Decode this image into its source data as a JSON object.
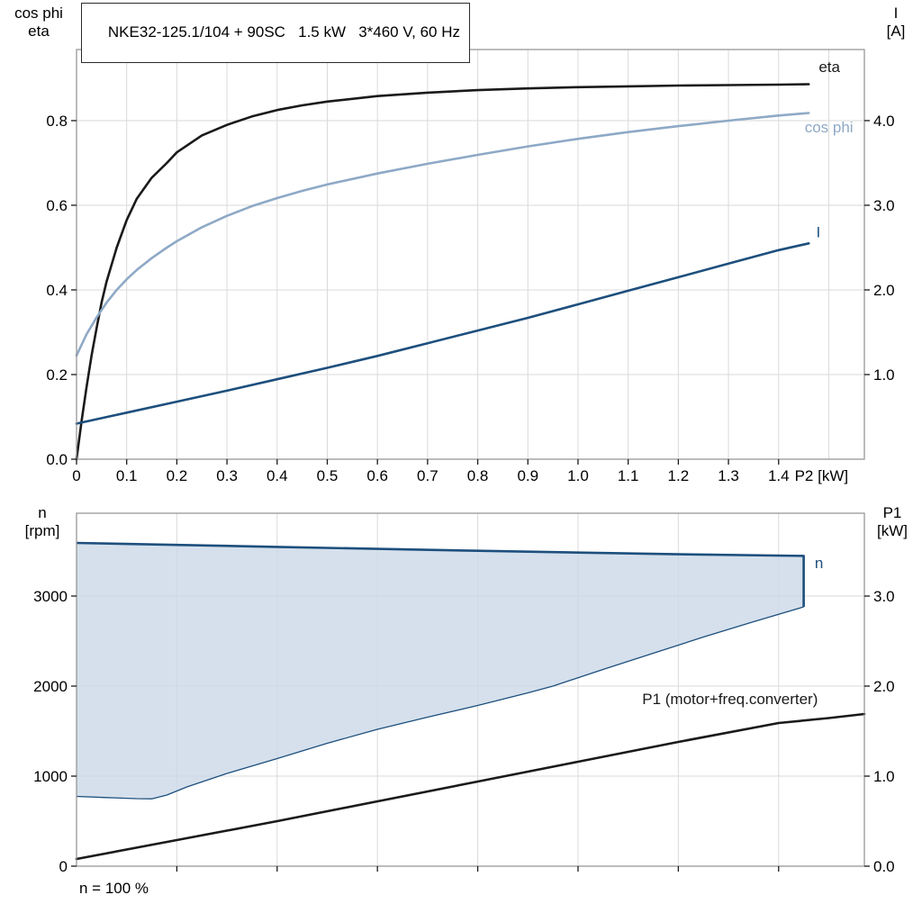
{
  "chart_data": [
    {
      "id": "top-chart",
      "type": "line",
      "title": "NKE32-125.1/104 + 90SC   1.5 kW   3*460 V, 60 Hz",
      "x_axis": {
        "min": 0,
        "max": 1.571,
        "tick_values": [
          0,
          0.1,
          0.2,
          0.3,
          0.4,
          0.5,
          0.6,
          0.7,
          0.8,
          0.9,
          1.0,
          1.1,
          1.2,
          1.3,
          1.4
        ],
        "tick_labels": [
          "0",
          "0.1",
          "0.2",
          "0.3",
          "0.4",
          "0.5",
          "0.6",
          "0.7",
          "0.8",
          "0.9",
          "1.0",
          "1.1",
          "1.2",
          "1.3",
          "1.4"
        ],
        "grid_values": [
          0.1,
          0.2,
          0.3,
          0.4,
          0.5,
          0.6,
          0.7,
          0.8,
          0.9,
          1.0,
          1.1,
          1.2,
          1.3,
          1.4,
          1.5
        ],
        "unit_label": "P2 [kW]",
        "unit_x": 1.432
      },
      "left_axis": {
        "label_lines": [
          "cos phi",
          "eta"
        ],
        "min": 0,
        "max": 0.968,
        "tick_values": [
          0,
          0.2,
          0.4,
          0.6,
          0.8
        ],
        "tick_labels": [
          "0.0",
          "0.2",
          "0.4",
          "0.6",
          "0.8"
        ],
        "grid_values": [
          0.2,
          0.4,
          0.6,
          0.8
        ]
      },
      "right_axis": {
        "label_lines": [
          "I",
          "[A]"
        ],
        "min": 0,
        "max": 4.84,
        "tick_values": [
          1.0,
          2.0,
          3.0,
          4.0
        ],
        "tick_labels": [
          "1.0",
          "2.0",
          "3.0",
          "4.0"
        ]
      },
      "series": [
        {
          "name": "eta",
          "kind": "line",
          "axis": "left",
          "color": "#1a1a1a",
          "width": 2.6,
          "label": "eta",
          "label_pos": [
            1.48,
            0.915
          ],
          "points": [
            [
              0,
              0
            ],
            [
              0.01,
              0.09
            ],
            [
              0.02,
              0.17
            ],
            [
              0.03,
              0.245
            ],
            [
              0.04,
              0.31
            ],
            [
              0.05,
              0.37
            ],
            [
              0.06,
              0.42
            ],
            [
              0.08,
              0.5
            ],
            [
              0.1,
              0.565
            ],
            [
              0.12,
              0.615
            ],
            [
              0.15,
              0.665
            ],
            [
              0.18,
              0.7
            ],
            [
              0.2,
              0.725
            ],
            [
              0.25,
              0.765
            ],
            [
              0.3,
              0.79
            ],
            [
              0.35,
              0.81
            ],
            [
              0.4,
              0.825
            ],
            [
              0.45,
              0.836
            ],
            [
              0.5,
              0.845
            ],
            [
              0.6,
              0.858
            ],
            [
              0.7,
              0.866
            ],
            [
              0.8,
              0.872
            ],
            [
              0.9,
              0.876
            ],
            [
              1.0,
              0.879
            ],
            [
              1.1,
              0.881
            ],
            [
              1.2,
              0.883
            ],
            [
              1.3,
              0.884
            ],
            [
              1.4,
              0.885
            ],
            [
              1.46,
              0.886
            ]
          ]
        },
        {
          "name": "cos-phi",
          "kind": "line",
          "axis": "left",
          "color": "#8ea9c6",
          "width": 2.6,
          "label": "cos phi",
          "label_pos": [
            1.452,
            0.772
          ],
          "points": [
            [
              0,
              0.245
            ],
            [
              0.02,
              0.295
            ],
            [
              0.04,
              0.335
            ],
            [
              0.06,
              0.37
            ],
            [
              0.08,
              0.4
            ],
            [
              0.1,
              0.425
            ],
            [
              0.12,
              0.447
            ],
            [
              0.15,
              0.475
            ],
            [
              0.18,
              0.5
            ],
            [
              0.2,
              0.515
            ],
            [
              0.25,
              0.548
            ],
            [
              0.3,
              0.575
            ],
            [
              0.35,
              0.598
            ],
            [
              0.4,
              0.617
            ],
            [
              0.45,
              0.634
            ],
            [
              0.5,
              0.649
            ],
            [
              0.6,
              0.675
            ],
            [
              0.7,
              0.698
            ],
            [
              0.8,
              0.719
            ],
            [
              0.9,
              0.739
            ],
            [
              1.0,
              0.757
            ],
            [
              1.1,
              0.773
            ],
            [
              1.2,
              0.787
            ],
            [
              1.3,
              0.8
            ],
            [
              1.4,
              0.812
            ],
            [
              1.46,
              0.818
            ]
          ]
        },
        {
          "name": "current",
          "kind": "line",
          "axis": "right",
          "color": "#1d4f7d",
          "width": 2.6,
          "label": "I",
          "label_pos": [
            1.475,
            2.62
          ],
          "points": [
            [
              0,
              0.42
            ],
            [
              0.1,
              0.55
            ],
            [
              0.2,
              0.68
            ],
            [
              0.3,
              0.81
            ],
            [
              0.4,
              0.945
            ],
            [
              0.5,
              1.08
            ],
            [
              0.6,
              1.22
            ],
            [
              0.7,
              1.37
            ],
            [
              0.8,
              1.52
            ],
            [
              0.9,
              1.67
            ],
            [
              1.0,
              1.83
            ],
            [
              1.1,
              1.99
            ],
            [
              1.2,
              2.15
            ],
            [
              1.3,
              2.31
            ],
            [
              1.4,
              2.47
            ],
            [
              1.46,
              2.55
            ]
          ]
        }
      ]
    },
    {
      "id": "bottom-chart",
      "type": "line",
      "annotation": "n = 100 %",
      "x_axis": {
        "min": 0,
        "max": 1.571,
        "tick_values": [
          0.2,
          0.4,
          0.6,
          0.8,
          1.0,
          1.2,
          1.4
        ],
        "tick_labels": [],
        "grid_values": [
          0.2,
          0.4,
          0.6,
          0.8,
          1.0,
          1.2,
          1.4
        ]
      },
      "left_axis": {
        "label_lines": [
          "n",
          "[rpm]"
        ],
        "min": 0,
        "max": 3920,
        "tick_values": [
          0,
          1000,
          2000,
          3000
        ],
        "tick_labels": [
          "0",
          "1000",
          "2000",
          "3000"
        ],
        "grid_values": [
          1000,
          2000,
          3000
        ]
      },
      "right_axis": {
        "label_lines": [
          "P1",
          "[kW]"
        ],
        "min": 0,
        "max": 3.92,
        "tick_values": [
          0,
          1.0,
          2.0,
          3.0
        ],
        "tick_labels": [
          "0.0",
          "1.0",
          "2.0",
          "3.0"
        ]
      },
      "series": [
        {
          "name": "speed-band",
          "kind": "band",
          "axis": "left",
          "color": "#1d4f7d",
          "width": 2.6,
          "lower_width": 1.3,
          "fill": "#cad8e7",
          "fill_opacity": 0.8,
          "label": "n",
          "label_pos": [
            1.472,
            3310
          ],
          "upper": [
            [
              0,
              3590
            ],
            [
              0.2,
              3568
            ],
            [
              0.4,
              3546
            ],
            [
              0.6,
              3524
            ],
            [
              0.8,
              3503
            ],
            [
              1.0,
              3483
            ],
            [
              1.2,
              3464
            ],
            [
              1.45,
              3446
            ],
            [
              1.45,
              2880
            ]
          ],
          "lower": [
            [
              0,
              775
            ],
            [
              0.06,
              762
            ],
            [
              0.12,
              750
            ],
            [
              0.15,
              748
            ],
            [
              0.18,
              790
            ],
            [
              0.22,
              880
            ],
            [
              0.3,
              1030
            ],
            [
              0.4,
              1195
            ],
            [
              0.5,
              1365
            ],
            [
              0.6,
              1520
            ],
            [
              0.7,
              1655
            ],
            [
              0.8,
              1785
            ],
            [
              0.9,
              1925
            ],
            [
              0.95,
              2000
            ],
            [
              1.05,
              2185
            ],
            [
              1.15,
              2365
            ],
            [
              1.25,
              2545
            ],
            [
              1.35,
              2715
            ],
            [
              1.45,
              2880
            ]
          ]
        },
        {
          "name": "p1",
          "kind": "line",
          "axis": "right",
          "color": "#1a1a1a",
          "width": 2.6,
          "label": "P1 (motor+freq.converter)",
          "label_pos": [
            1.128,
            1.8
          ],
          "points": [
            [
              0,
              0.08
            ],
            [
              0.2,
              0.29
            ],
            [
              0.4,
              0.5
            ],
            [
              0.6,
              0.72
            ],
            [
              0.8,
              0.94
            ],
            [
              1.0,
              1.16
            ],
            [
              1.2,
              1.38
            ],
            [
              1.4,
              1.59
            ],
            [
              1.5,
              1.645
            ],
            [
              1.571,
              1.69
            ]
          ]
        }
      ]
    }
  ],
  "theme": {
    "grid_color": "#dadada",
    "axis_color": "#8f8f8f",
    "tick_color": "#1a1a1a",
    "text_color": "#000000"
  }
}
